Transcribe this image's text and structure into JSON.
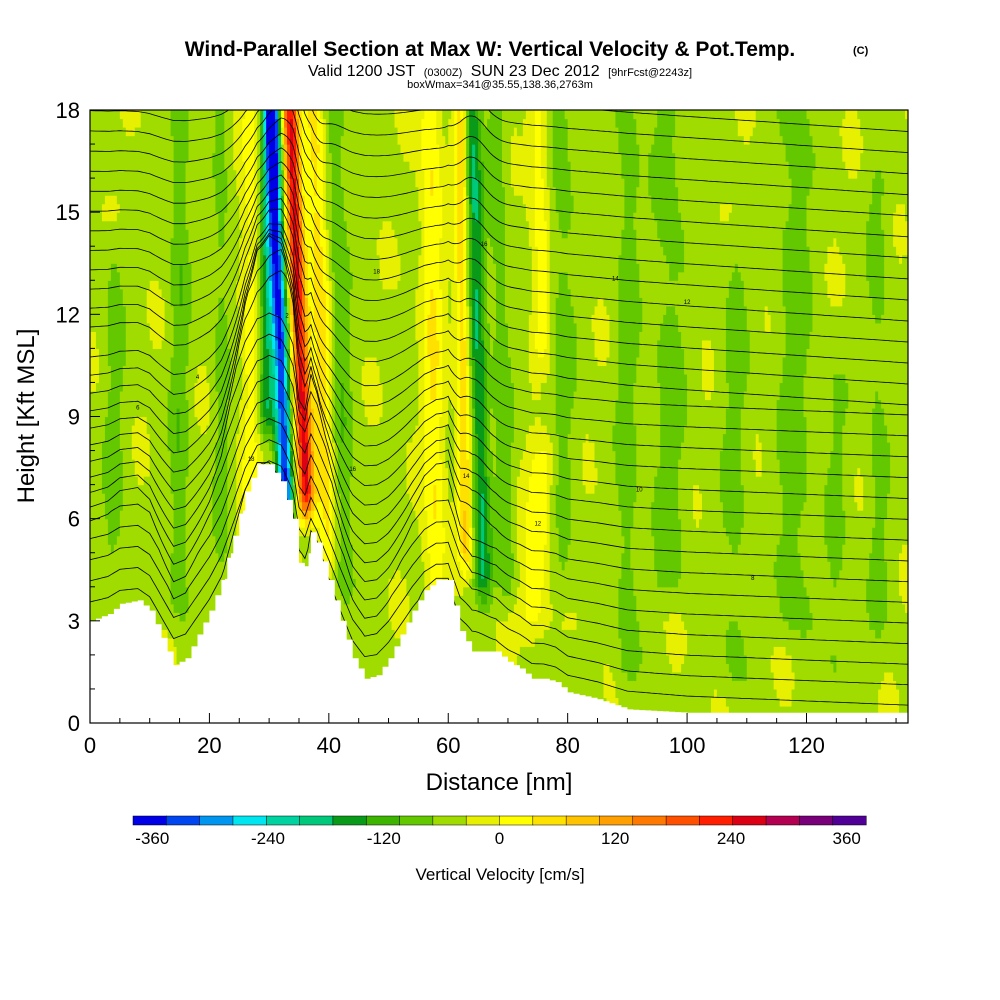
{
  "header": {
    "title": "Wind-Parallel Section at Max W: Vertical Velocity & Pot.Temp.",
    "copyright": "(C)",
    "valid_line": {
      "prefix": "Valid 1200 JST",
      "utc": "(0300Z)",
      "date": "SUN 23 Dec 2012",
      "forecast": "[9hrFcst@2243z]"
    },
    "box_info": "boxWmax=341@35.55,138.36,2763m"
  },
  "chart_data": {
    "type": "heatmap",
    "title": "Wind-Parallel Section at Max W: Vertical Velocity & Pot.Temp.",
    "xlabel": "Distance [nm]",
    "ylabel": "Height [Kft MSL]",
    "xlim": [
      0,
      137
    ],
    "ylim": [
      0,
      18
    ],
    "x_ticks": [
      0,
      20,
      40,
      60,
      80,
      100,
      120
    ],
    "y_ticks": [
      0,
      3,
      6,
      9,
      12,
      15,
      18
    ],
    "background_w": 10,
    "vertical_velocity_features": [
      {
        "x": 27,
        "x_top": 27,
        "w": 70,
        "sigma": 1.6,
        "z0": 4,
        "z1": 18
      },
      {
        "x": 29.5,
        "x_top": 30,
        "w": -150,
        "sigma": 1.4,
        "z0": 8,
        "z1": 18
      },
      {
        "x": 33,
        "x_top": 30.5,
        "w": -341,
        "sigma": 1.3,
        "z0": 5.5,
        "z1": 18
      },
      {
        "x": 36.5,
        "x_top": 33.5,
        "w": 341,
        "sigma": 1.4,
        "z0": 5.5,
        "z1": 18
      },
      {
        "x": 40,
        "x_top": 37.5,
        "w": 110,
        "sigma": 1.6,
        "z0": 4,
        "z1": 18
      },
      {
        "x": 43,
        "x_top": 41,
        "w": -60,
        "sigma": 1.8,
        "z0": 3,
        "z1": 18
      },
      {
        "x": 15,
        "x_top": 15,
        "w": -60,
        "sigma": 1.6,
        "z0": 2.5,
        "z1": 18
      },
      {
        "x": 22,
        "x_top": 22,
        "w": -45,
        "sigma": 1.3,
        "z0": 4,
        "z1": 18
      },
      {
        "x": 4,
        "x_top": 4,
        "w": -40,
        "sigma": 2,
        "z0": 3,
        "z1": 14
      },
      {
        "x": 58,
        "x_top": 57,
        "w": 90,
        "sigma": 1.8,
        "z0": 3,
        "z1": 18
      },
      {
        "x": 63,
        "x_top": 62,
        "w": 130,
        "sigma": 1.2,
        "z0": 4,
        "z1": 18
      },
      {
        "x": 66,
        "x_top": 64,
        "w": -150,
        "sigma": 1.5,
        "z0": 3,
        "z1": 18
      },
      {
        "x": 70,
        "x_top": 68,
        "w": -55,
        "sigma": 1.5,
        "z0": 3,
        "z1": 18
      },
      {
        "x": 74,
        "x_top": 76,
        "w": 80,
        "sigma": 2.5,
        "z0": 2,
        "z1": 8
      },
      {
        "x": 76,
        "x_top": 75,
        "w": 75,
        "sigma": 1.6,
        "z0": 10,
        "z1": 18
      },
      {
        "x": 79,
        "x_top": 79,
        "w": -45,
        "sigma": 2.5,
        "z0": 3,
        "z1": 18
      },
      {
        "x": 90,
        "x_top": 90,
        "w": -50,
        "sigma": 2,
        "z0": 0.5,
        "z1": 18
      },
      {
        "x": 97,
        "x_top": 97,
        "w": -45,
        "sigma": 3,
        "z0": 3,
        "z1": 18
      },
      {
        "x": 108,
        "x_top": 108,
        "w": -40,
        "sigma": 2.5,
        "z0": 0.5,
        "z1": 14
      },
      {
        "x": 118,
        "x_top": 118,
        "w": -50,
        "sigma": 3,
        "z0": 2,
        "z1": 18
      },
      {
        "x": 125,
        "x_top": 125,
        "w": -35,
        "sigma": 2,
        "z0": 0.5,
        "z1": 10
      },
      {
        "x": 132,
        "x_top": 132,
        "w": -40,
        "sigma": 2,
        "z0": 2,
        "z1": 16
      }
    ],
    "terrain": {
      "x": [
        0,
        3,
        5,
        8,
        10,
        12,
        14,
        16,
        18,
        20,
        22,
        24,
        26,
        28,
        30,
        32,
        34,
        35,
        36,
        37,
        38,
        40,
        42,
        44,
        46,
        48,
        50,
        52,
        54,
        56,
        58,
        60,
        62,
        64,
        66,
        68,
        70,
        72,
        74,
        76,
        78,
        80,
        85,
        90,
        95,
        100,
        110,
        120,
        130,
        137
      ],
      "y": [
        3.0,
        3.2,
        3.5,
        3.6,
        3.3,
        2.5,
        1.7,
        1.9,
        2.6,
        3.3,
        4.2,
        5.5,
        6.8,
        7.6,
        7.6,
        7.1,
        6.0,
        4.7,
        4.6,
        5.6,
        5.3,
        4.2,
        3.0,
        1.9,
        1.3,
        1.4,
        1.9,
        2.6,
        3.3,
        3.9,
        4.2,
        4.2,
        2.7,
        2.1,
        2.1,
        2.1,
        1.8,
        1.6,
        1.3,
        1.3,
        1.2,
        0.9,
        0.7,
        0.4,
        0.35,
        0.3,
        0.3,
        0.3,
        0.3,
        0.3
      ]
    },
    "theta_contour_labels": [
      "18",
      "16",
      "14",
      "12",
      "10",
      "8",
      "6",
      "4",
      "2"
    ],
    "colorbar": {
      "label": "Vertical Velocity [cm/s]",
      "min": -380,
      "max": 380,
      "step": 40,
      "tick_values": [
        -360,
        -240,
        -120,
        0,
        120,
        240,
        360
      ],
      "tick_labels": [
        "-360",
        "-240",
        "-120",
        "0",
        "120",
        "240",
        "360"
      ],
      "colors": [
        "#0000e6",
        "#0046f0",
        "#0096f0",
        "#00e6f0",
        "#00d2a0",
        "#00c87a",
        "#0a9a1a",
        "#3cb400",
        "#64c800",
        "#a0dc00",
        "#e6f000",
        "#ffff00",
        "#ffe100",
        "#ffc300",
        "#ffa000",
        "#ff7800",
        "#ff5000",
        "#ff1e00",
        "#dc0014",
        "#b40050",
        "#780078",
        "#500096"
      ]
    }
  }
}
